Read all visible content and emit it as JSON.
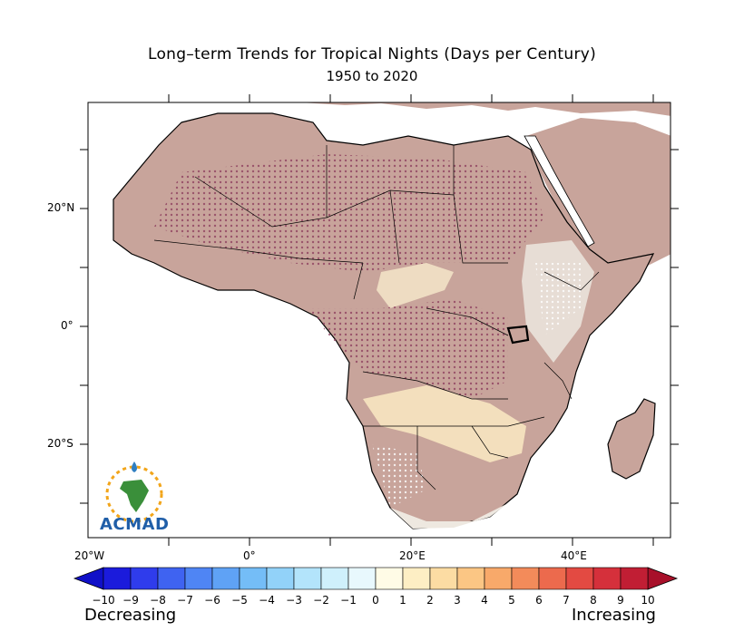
{
  "title": "Long–term Trends for Tropical Nights (Days per Century)",
  "subtitle": "1950 to 2020",
  "y_ticks": [
    "20°N",
    "0°",
    "20°S"
  ],
  "x_ticks": [
    "20°W",
    "0°",
    "20°E",
    "40°E"
  ],
  "colorbar": {
    "labels": [
      "−10",
      "−9",
      "−8",
      "−7",
      "−6",
      "−5",
      "−4",
      "−3",
      "−2",
      "−1",
      "0",
      "1",
      "2",
      "3",
      "4",
      "5",
      "6",
      "7",
      "8",
      "9",
      "10"
    ],
    "colors": [
      "#1b1bdc",
      "#2f3cec",
      "#3f63f1",
      "#4f85f4",
      "#5fa2f5",
      "#74bdf7",
      "#92d2f9",
      "#b3e4fb",
      "#cff0fc",
      "#e8f8fd",
      "#fffbe6",
      "#fdeec4",
      "#fcdca3",
      "#fbc684",
      "#f8a96a",
      "#f38b5a",
      "#ec6a4d",
      "#e34a42",
      "#d5303b",
      "#c11e34"
    ],
    "arrow_left_color": "#1010c8",
    "arrow_right_color": "#a8102a"
  },
  "legend_left": "Decreasing",
  "legend_right": "Increasing",
  "logo_text": "ACMAD",
  "land_color": "#c8a49b"
}
